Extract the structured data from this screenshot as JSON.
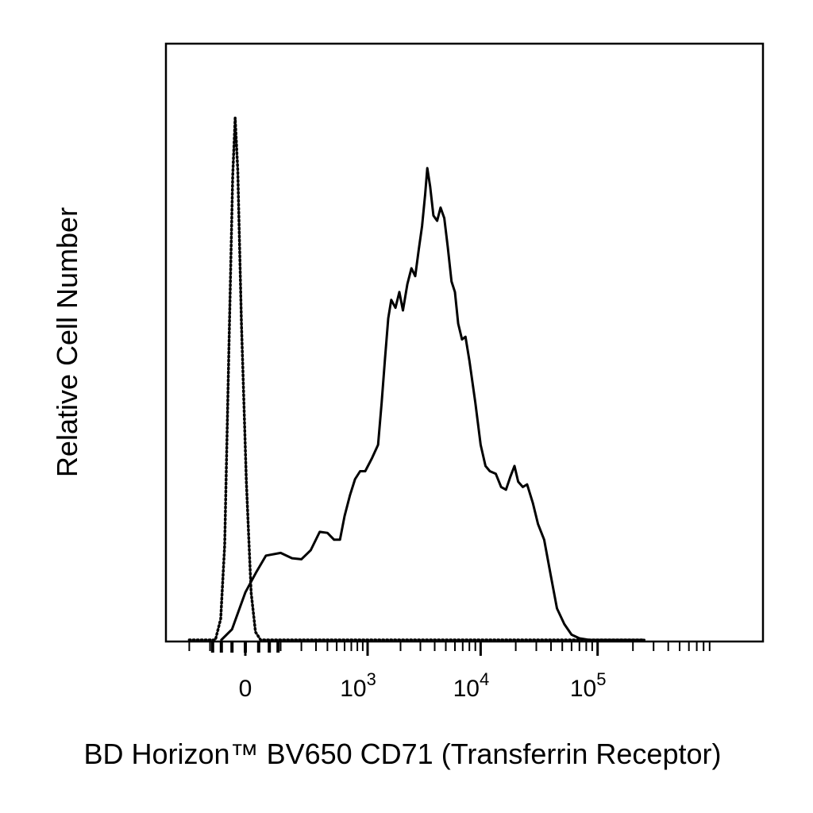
{
  "chart_data": {
    "type": "line",
    "xlabel": "BD Horizon™ BV650 CD71 (Transferrin Receptor)",
    "ylabel": "Relative Cell Number",
    "x_scale": "biexponential (logicle)",
    "xlim": [
      -200,
      250000
    ],
    "ylim": [
      0,
      100
    ],
    "x_ticks": [
      {
        "base": "0",
        "exp": "",
        "value": 0
      },
      {
        "base": "10",
        "exp": "3",
        "value": 1000
      },
      {
        "base": "10",
        "exp": "4",
        "value": 10000
      },
      {
        "base": "10",
        "exp": "5",
        "value": 100000
      }
    ],
    "grid": false,
    "legend": "none",
    "series": [
      {
        "style": "solid",
        "color": "#000000",
        "points": [
          [
            -60,
            0
          ],
          [
            -30,
            2
          ],
          [
            0,
            9
          ],
          [
            25,
            13
          ],
          [
            50,
            16
          ],
          [
            100,
            16.5
          ],
          [
            150,
            15.5
          ],
          [
            200,
            15.3
          ],
          [
            260,
            17
          ],
          [
            330,
            20.5
          ],
          [
            400,
            20.3
          ],
          [
            470,
            19
          ],
          [
            540,
            19
          ],
          [
            600,
            23.5
          ],
          [
            680,
            27.5
          ],
          [
            760,
            30.5
          ],
          [
            850,
            32
          ],
          [
            950,
            32
          ],
          [
            1100,
            34.5
          ],
          [
            1250,
            37
          ],
          [
            1350,
            45
          ],
          [
            1450,
            53.5
          ],
          [
            1550,
            61
          ],
          [
            1650,
            64.5
          ],
          [
            1800,
            63
          ],
          [
            1950,
            66
          ],
          [
            2100,
            62.5
          ],
          [
            2300,
            67.5
          ],
          [
            2500,
            70.5
          ],
          [
            2700,
            69
          ],
          [
            2900,
            74
          ],
          [
            3100,
            78.5
          ],
          [
            3300,
            84.5
          ],
          [
            3450,
            89.5
          ],
          [
            3650,
            86
          ],
          [
            3900,
            80.5
          ],
          [
            4200,
            79.5
          ],
          [
            4500,
            82
          ],
          [
            4850,
            80
          ],
          [
            5200,
            74.5
          ],
          [
            5600,
            68
          ],
          [
            6000,
            66
          ],
          [
            6400,
            60
          ],
          [
            6900,
            57
          ],
          [
            7400,
            57.5
          ],
          [
            8000,
            53
          ],
          [
            9000,
            45
          ],
          [
            10000,
            37
          ],
          [
            11000,
            33
          ],
          [
            12000,
            32
          ],
          [
            13500,
            31.5
          ],
          [
            15000,
            29
          ],
          [
            16500,
            28.5
          ],
          [
            18000,
            31
          ],
          [
            19500,
            33
          ],
          [
            21000,
            30
          ],
          [
            23000,
            29
          ],
          [
            25000,
            29.5
          ],
          [
            28000,
            26
          ],
          [
            31000,
            22
          ],
          [
            35000,
            19
          ],
          [
            40000,
            12
          ],
          [
            45000,
            6
          ],
          [
            52000,
            3
          ],
          [
            60000,
            1
          ],
          [
            70000,
            0.3
          ],
          [
            85000,
            0
          ],
          [
            250000,
            0
          ]
        ]
      },
      {
        "style": "dotted",
        "color": "#000000",
        "points": [
          [
            -200,
            0
          ],
          [
            -80,
            0
          ],
          [
            -62,
            4
          ],
          [
            -50,
            18
          ],
          [
            -38,
            55
          ],
          [
            -28,
            88
          ],
          [
            -22,
            99
          ],
          [
            -16,
            89
          ],
          [
            -8,
            60
          ],
          [
            2,
            30
          ],
          [
            12,
            9
          ],
          [
            22,
            1.5
          ],
          [
            35,
            0
          ],
          [
            250000,
            0
          ]
        ]
      }
    ]
  }
}
